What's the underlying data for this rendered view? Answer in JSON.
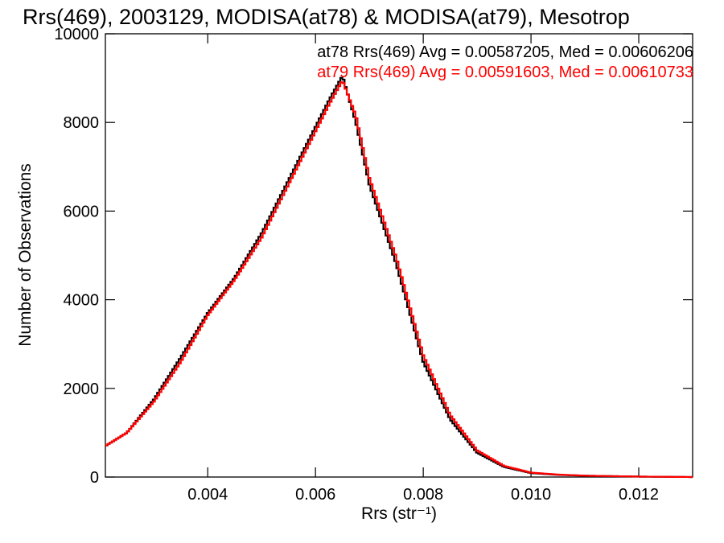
{
  "chart_data": {
    "type": "line",
    "title": "Rrs(469), 2003129, MODISA(at78) & MODISA(at79), Mesotrop",
    "xlabel": "Rrs (str⁻¹)",
    "ylabel": "Number of Observations",
    "xlim": [
      0.0021,
      0.013
    ],
    "ylim": [
      0,
      10000
    ],
    "x_ticks": [
      0.004,
      0.006,
      0.008,
      0.01,
      0.012
    ],
    "x_tick_labels": [
      "0.004",
      "0.006",
      "0.008",
      "0.010",
      "0.012"
    ],
    "y_ticks": [
      0,
      2000,
      4000,
      6000,
      8000,
      10000
    ],
    "y_tick_labels": [
      "0",
      "2000",
      "4000",
      "6000",
      "8000",
      "10000"
    ],
    "grid": false,
    "legend": "top-right",
    "series": [
      {
        "name": "at78",
        "color": "#000000",
        "stats_text": "at78 Rrs(469) Avg = 0.00587205, Med = 0.00606206",
        "x": [
          0.0021,
          0.0025,
          0.003,
          0.0035,
          0.004,
          0.0045,
          0.005,
          0.0055,
          0.006,
          0.00625,
          0.0065,
          0.00675,
          0.007,
          0.0075,
          0.008,
          0.0085,
          0.009,
          0.0095,
          0.01,
          0.0105,
          0.011,
          0.012,
          0.013
        ],
        "y": [
          700,
          1000,
          1750,
          2700,
          3700,
          4500,
          5500,
          6700,
          7900,
          8500,
          9050,
          8000,
          6600,
          4800,
          2600,
          1300,
          550,
          230,
          90,
          50,
          30,
          10,
          0
        ]
      },
      {
        "name": "at79",
        "color": "#ff0000",
        "stats_text": "at79 Rrs(469) Avg = 0.00591603, Med = 0.00610733",
        "x": [
          0.0021,
          0.0025,
          0.003,
          0.0035,
          0.004,
          0.0045,
          0.005,
          0.0055,
          0.006,
          0.00625,
          0.0065,
          0.00675,
          0.007,
          0.0075,
          0.008,
          0.0085,
          0.009,
          0.0095,
          0.01,
          0.0105,
          0.011,
          0.012,
          0.013
        ],
        "y": [
          700,
          1000,
          1700,
          2600,
          3650,
          4450,
          5400,
          6600,
          7800,
          8400,
          8950,
          8150,
          6750,
          4950,
          2750,
          1400,
          600,
          250,
          100,
          55,
          30,
          10,
          0
        ]
      }
    ]
  }
}
